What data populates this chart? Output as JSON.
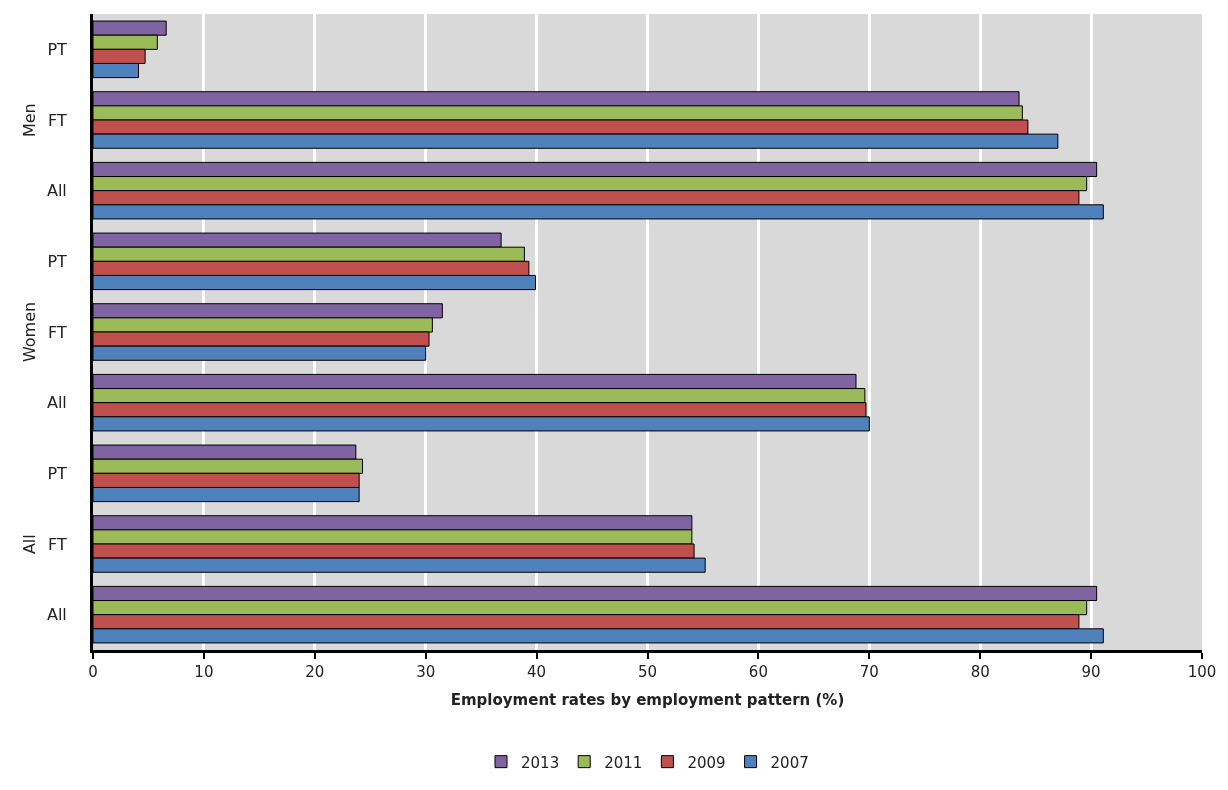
{
  "chart_data": {
    "type": "bar",
    "orientation": "horizontal",
    "xlabel": "Employment rates by employment pattern (%)",
    "categories": [
      "PT",
      "FT",
      "All",
      "PT",
      "FT",
      "All",
      "PT",
      "FT",
      "All"
    ],
    "annotations": [
      "Men",
      "Women",
      "All"
    ],
    "series": [
      {
        "name": "2013",
        "color": "#8064a2",
        "values": [
          6.6,
          83.5,
          90.5,
          36.8,
          31.5,
          68.8,
          23.7,
          54.0,
          90.5
        ]
      },
      {
        "name": "2011",
        "color": "#9bbb59",
        "values": [
          5.8,
          83.8,
          89.6,
          38.9,
          30.6,
          69.6,
          24.3,
          54.0,
          89.6
        ]
      },
      {
        "name": "2009",
        "color": "#c0504d",
        "values": [
          4.7,
          84.3,
          88.9,
          39.3,
          30.3,
          69.7,
          24.0,
          54.2,
          88.9
        ]
      },
      {
        "name": "2007",
        "color": "#4f81bd",
        "values": [
          4.1,
          87.0,
          91.1,
          39.9,
          30.0,
          70.0,
          24.0,
          55.2,
          91.1
        ]
      }
    ],
    "xlim": [
      0,
      100
    ],
    "xticks": [
      0,
      10,
      20,
      30,
      40,
      50,
      60,
      70,
      80,
      90,
      100
    ],
    "grid": "x",
    "legend": "bottom"
  }
}
